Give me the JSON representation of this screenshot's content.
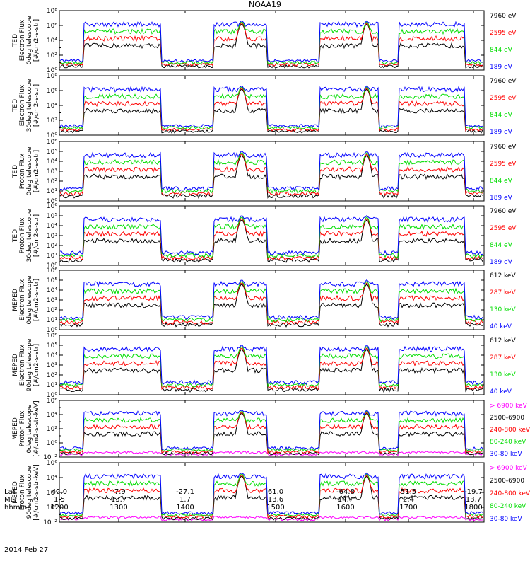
{
  "title": "NOAA19",
  "date": "2014 Feb 27",
  "chart_data": [
    {
      "type": "line",
      "panel": "TED Electron Flux 0deg telescope",
      "ylabel": [
        "TED",
        "Electron Flux",
        "0deg telescope",
        "[#/cm2-s-str]"
      ],
      "ylog": true,
      "ylim": [
        1,
        100000000
      ],
      "yticks": [
        {
          "v": 1,
          "label": "10⁰"
        },
        {
          "v": 100,
          "label": "10²"
        },
        {
          "v": 10000,
          "label": "10⁴"
        },
        {
          "v": 1000000,
          "label": "10⁶"
        },
        {
          "v": 100000000,
          "label": "10⁸"
        }
      ],
      "series": [
        {
          "name": "7960 eV",
          "color": "#000000"
        },
        {
          "name": "2595 eV",
          "color": "#ff0000"
        },
        {
          "name": "844 eV",
          "color": "#00dd00"
        },
        {
          "name": "189 eV",
          "color": "#0000ff"
        }
      ]
    },
    {
      "type": "line",
      "panel": "TED Electron Flux 30deg telescope",
      "ylabel": [
        "TED",
        "Electron Flux",
        "30deg telescope",
        "[#/cm2-s-str]"
      ],
      "ylog": true,
      "ylim": [
        1,
        100000000
      ],
      "yticks": [
        {
          "v": 1,
          "label": "10⁰"
        },
        {
          "v": 100,
          "label": "10²"
        },
        {
          "v": 10000,
          "label": "10⁴"
        },
        {
          "v": 1000000,
          "label": "10⁶"
        },
        {
          "v": 100000000,
          "label": "10⁸"
        }
      ],
      "series": [
        {
          "name": "7960 eV",
          "color": "#000000"
        },
        {
          "name": "2595 eV",
          "color": "#ff0000"
        },
        {
          "name": "844 eV",
          "color": "#00dd00"
        },
        {
          "name": "189 eV",
          "color": "#0000ff"
        }
      ]
    },
    {
      "type": "line",
      "panel": "TED Proton Flux 0deg telescope",
      "ylabel": [
        "TED",
        "Proton Flux",
        "0deg telescope",
        "[#/cm2-s-str]"
      ],
      "ylog": true,
      "ylim": [
        1,
        1000000
      ],
      "yticks": [
        {
          "v": 1,
          "label": "10⁰"
        },
        {
          "v": 10,
          "label": "10¹"
        },
        {
          "v": 100,
          "label": "10²"
        },
        {
          "v": 1000,
          "label": "10³"
        },
        {
          "v": 10000,
          "label": "10⁴"
        },
        {
          "v": 100000,
          "label": "10⁵"
        },
        {
          "v": 1000000,
          "label": "10⁶"
        }
      ],
      "series": [
        {
          "name": "7960 eV",
          "color": "#000000"
        },
        {
          "name": "2595 eV",
          "color": "#ff0000"
        },
        {
          "name": "844 eV",
          "color": "#00dd00"
        },
        {
          "name": "189 eV",
          "color": "#0000ff"
        }
      ]
    },
    {
      "type": "line",
      "panel": "TED Proton Flux 30deg telescope",
      "ylabel": [
        "TED",
        "Proton Flux",
        "30deg telescope",
        "[#/cm2-s-str]"
      ],
      "ylog": true,
      "ylim": [
        1,
        1000000
      ],
      "yticks": [
        {
          "v": 1,
          "label": "10⁰"
        },
        {
          "v": 10,
          "label": "10¹"
        },
        {
          "v": 100,
          "label": "10²"
        },
        {
          "v": 1000,
          "label": "10³"
        },
        {
          "v": 10000,
          "label": "10⁴"
        },
        {
          "v": 100000,
          "label": "10⁵"
        },
        {
          "v": 1000000,
          "label": "10⁶"
        }
      ],
      "series": [
        {
          "name": "7960 eV",
          "color": "#000000"
        },
        {
          "name": "2595 eV",
          "color": "#ff0000"
        },
        {
          "name": "844 eV",
          "color": "#00dd00"
        },
        {
          "name": "189 eV",
          "color": "#0000ff"
        }
      ]
    },
    {
      "type": "line",
      "panel": "MEPED Electron Flux 0deg telescope",
      "ylabel": [
        "MEPED",
        "Electron Flux",
        "0deg telescope",
        "[#/cm2-s-str]"
      ],
      "ylog": true,
      "ylim": [
        1,
        1000000
      ],
      "yticks": [
        {
          "v": 1,
          "label": "10⁰"
        },
        {
          "v": 10,
          "label": "10¹"
        },
        {
          "v": 100,
          "label": "10²"
        },
        {
          "v": 1000,
          "label": "10³"
        },
        {
          "v": 10000,
          "label": "10⁴"
        },
        {
          "v": 100000,
          "label": "10⁵"
        },
        {
          "v": 1000000,
          "label": "10⁶"
        }
      ],
      "series": [
        {
          "name": "612 keV",
          "color": "#000000"
        },
        {
          "name": "287 keV",
          "color": "#ff0000"
        },
        {
          "name": "130 keV",
          "color": "#00dd00"
        },
        {
          "name": "40 keV",
          "color": "#0000ff"
        }
      ]
    },
    {
      "type": "line",
      "panel": "MEPED Electron Flux 90deg telescope",
      "ylabel": [
        "MEPED",
        "Electron Flux",
        "90deg telescope",
        "[#/cm2-s-str]"
      ],
      "ylog": true,
      "ylim": [
        1,
        1000000
      ],
      "yticks": [
        {
          "v": 1,
          "label": "10⁰"
        },
        {
          "v": 10,
          "label": "10¹"
        },
        {
          "v": 100,
          "label": "10²"
        },
        {
          "v": 1000,
          "label": "10³"
        },
        {
          "v": 10000,
          "label": "10⁴"
        },
        {
          "v": 100000,
          "label": "10⁵"
        },
        {
          "v": 1000000,
          "label": "10⁶"
        }
      ],
      "series": [
        {
          "name": "612 keV",
          "color": "#000000"
        },
        {
          "name": "287 keV",
          "color": "#ff0000"
        },
        {
          "name": "130 keV",
          "color": "#00dd00"
        },
        {
          "name": "40 keV",
          "color": "#0000ff"
        }
      ]
    },
    {
      "type": "line",
      "panel": "MEPED Proton Flux 0deg telescope",
      "ylabel": [
        "MEPED",
        "Proton Flux",
        "0deg telescope",
        "[#/cm2-s-str-keV]"
      ],
      "ylog": true,
      "ylim": [
        0.01,
        1000000
      ],
      "yticks": [
        {
          "v": 0.01,
          "label": "10⁻²"
        },
        {
          "v": 1,
          "label": "10⁰"
        },
        {
          "v": 100,
          "label": "10²"
        },
        {
          "v": 10000,
          "label": "10⁴"
        },
        {
          "v": 1000000,
          "label": "10⁶"
        }
      ],
      "series": [
        {
          "name": "> 6900 keV",
          "color": "#ff00ff"
        },
        {
          "name": "2500-6900",
          "color": "#000000"
        },
        {
          "name": "240-800 keV",
          "color": "#ff0000"
        },
        {
          "name": "80-240 keV",
          "color": "#00dd00"
        },
        {
          "name": "30-80 keV",
          "color": "#0000ff"
        }
      ]
    },
    {
      "type": "line",
      "panel": "MEPED Proton Flux 90deg telescope",
      "ylabel": [
        "MEPED",
        "Proton Flux",
        "90deg telescope",
        "[#/cm2-s-str-keV]"
      ],
      "ylog": true,
      "ylim": [
        0.01,
        1000000
      ],
      "yticks": [
        {
          "v": 0.01,
          "label": "10⁻²"
        },
        {
          "v": 1,
          "label": "10⁰"
        },
        {
          "v": 100,
          "label": "10²"
        },
        {
          "v": 10000,
          "label": "10⁴"
        },
        {
          "v": 1000000,
          "label": "10⁶"
        }
      ],
      "series": [
        {
          "name": "> 6900 keV",
          "color": "#ff00ff"
        },
        {
          "name": "2500-6900",
          "color": "#000000"
        },
        {
          "name": "240-800 keV",
          "color": "#ff0000"
        },
        {
          "name": "80-240 keV",
          "color": "#00dd00"
        },
        {
          "name": "30-80 keV",
          "color": "#0000ff"
        }
      ]
    }
  ],
  "x_axis": {
    "rows": [
      {
        "label": "Lat",
        "values": [
          "42.0",
          "-7.9",
          "-27.1",
          "61.0",
          "-64.8",
          "51.5",
          "-19.7"
        ]
      },
      {
        "label": "MLT",
        "values": [
          "1.5",
          "13.7",
          "1.7",
          "13.6",
          "14.7",
          "2.4",
          "13.7"
        ]
      },
      {
        "label": "hhmm",
        "values": [
          "1200",
          "1300",
          "1400",
          "1500",
          "1600",
          "1700",
          "1800"
        ]
      }
    ]
  }
}
